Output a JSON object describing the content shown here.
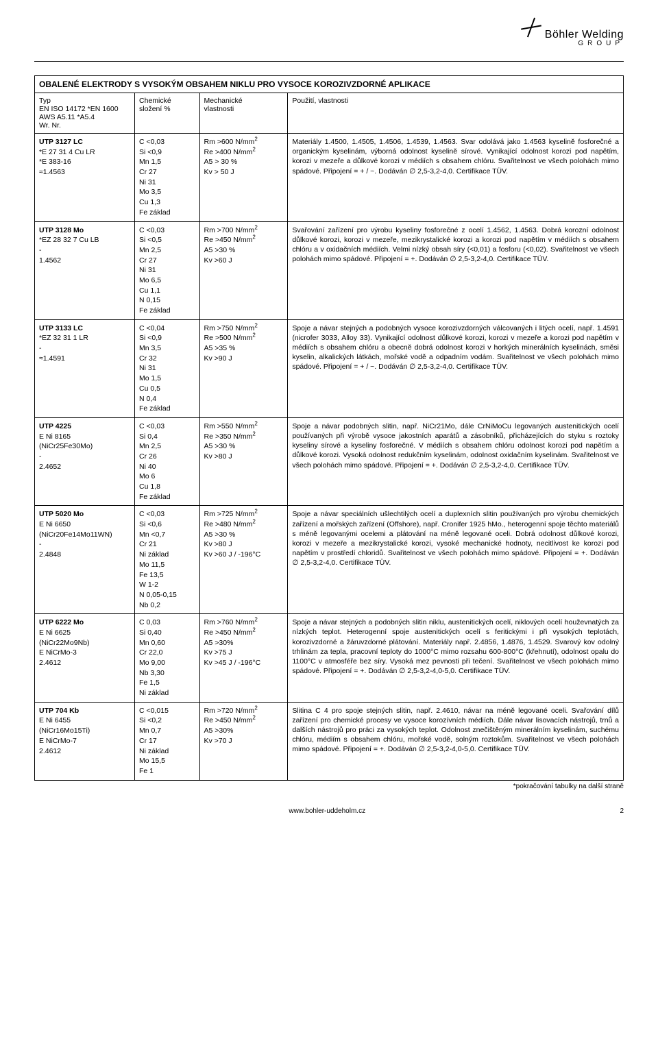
{
  "logo": {
    "line1": "Böhler Welding",
    "line2": "GROUP"
  },
  "title": "OBALENÉ ELEKTRODY S VYSOKÝM OBSAHEM NIKLU PRO VYSOCE KOROZIVZDORNÉ APLIKACE",
  "headers": {
    "typ": "Typ\nEN ISO 14172 *EN 1600\nAWS A5.11    *A5.4\nWr. Nr.",
    "chem": "Chemické\nsložení %",
    "mech": "Mechanické\nvlastnosti",
    "use": "Použití, vlastnosti"
  },
  "rows": [
    {
      "typ": "UTP 3127 LC\n*E 27 31 4 Cu LR\n*E 383-16\n≈1.4563",
      "typ_bold": "UTP 3127 LC",
      "chem": [
        "C  <0,03",
        "Si  <0,9",
        "Mn 1,5",
        "Cr   27",
        "Ni  31",
        "Mo  3,5",
        "Cu  1,3",
        "Fe  základ"
      ],
      "mech": [
        "Rm >600  N/mm²",
        "Re  >400 N/mm²",
        "A5 > 30 %",
        "Kv > 50 J"
      ],
      "use": "Materiály 1.4500, 1.4505, 1.4506, 1.4539, 1.4563. Svar odolává jako 1.4563 kyselině fosforečné a organickým kyselinám, výborná odolnost kyselině sírové. Vynikající odolnost korozi pod napětím, korozi v mezeře a důlkové korozi v médiích s obsahem chlóru. Svařitelnost ve všech polohách mimo spádové. Připojení = + / ~. Dodáván ∅ 2,5-3,2-4,0. Certifikace TÜV."
    },
    {
      "typ": "UTP 3128 Mo\n*EZ 28 32 7 Cu LB\n-\n1.4562",
      "typ_bold": "UTP 3128 Mo",
      "chem": [
        "C  <0,03",
        "Si  <0,5",
        "Mn 2,5",
        "Cr   27",
        "Ni  31",
        "Mo  6,5",
        "Cu  1,1",
        "N 0,15",
        "Fe  základ"
      ],
      "mech": [
        "Rm >700  N/mm²",
        "Re  >450 N/mm²",
        "A5  >30 %",
        "Kv  >60 J"
      ],
      "use": "Svařování zařízení pro výrobu kyseliny fosforečné z ocelí 1.4562, 1.4563. Dobrá korozní odolnost důlkové korozi, korozi v mezeře, mezikrystalické korozi a korozi pod napětím v médiích s obsahem chlóru a v oxidačních médiích. Velmi nízký obsah síry (<0,01) a fosforu (<0,02). Svařitelnost ve všech polohách mimo spádové. Připojení = +. Dodáván ∅ 2,5-3,2-4,0. Certifikace TÜV."
    },
    {
      "typ": "UTP 3133 LC\n*EZ 32 31 1 LR\n-\n≈1.4591",
      "typ_bold": "UTP 3133 LC",
      "chem": [
        "C  <0,04",
        "Si  <0,9",
        "Mn 3,5",
        "Cr   32",
        "Ni   31",
        "Mo  1,5",
        "Cu  0,5",
        "N   0,4",
        "Fe  základ"
      ],
      "mech": [
        "Rm >750  N/mm²",
        "Re  >500 N/mm²",
        "A5  >35 %",
        "Kv  >90 J"
      ],
      "use": "Spoje a návar stejných a podobných vysoce korozivzdorných válcovaných i litých ocelí, např. 1.4591 (nicrofer 3033, Alloy 33). Vynikající odolnost důlkové korozi, korozi v mezeře a korozi pod napětím v médiích s obsahem chlóru a obecně dobrá odolnost korozi v horkých minerálních kyselinách, směsi kyselin, alkalických látkách, mořské vodě a odpadním vodám. Svařitelnost ve všech polohách mimo spádové. Připojení = + / ~. Dodáván ∅ 2,5-3,2-4,0. Certifikace TÜV."
    },
    {
      "typ": "UTP 4225\nE Ni 8165\n(NiCr25Fe30Mo)\n-\n2.4652",
      "typ_bold": "UTP 4225",
      "chem": [
        "C  <0,03",
        "Si  0,4",
        "Mn 2,5",
        "Cr   26",
        "Ni   40",
        "Mo  6",
        "Cu  1,8",
        "Fe  základ"
      ],
      "mech": [
        "Rm >550  N/mm²",
        "Re  >350 N/mm²",
        "A5  >30 %",
        "Kv  >80 J"
      ],
      "use": "Spoje a návar podobných slitin, např. NiCr21Mo, dále CrNiMoCu legovaných austenitických ocelí používaných při výrobě vysoce jakostních aparátů a zásobníků, přicházejících do styku s roztoky kyseliny sírové a kyseliny fosforečné. V médiích s obsahem chlóru odolnost korozi pod napětím a důlkové korozi. Vysoká odolnost redukčním kyselinám, odolnost oxidačním kyselinám. Svařitelnost ve všech polohách mimo spádové. Připojení = +. Dodáván ∅ 2,5-3,2-4,0. Certifikace TÜV."
    },
    {
      "typ": "UTP 5020 Mo\nE Ni 6650\n(NiCr20Fe14Mo11WN)\n-\n2.4848",
      "typ_bold": "UTP 5020 Mo",
      "chem": [
        "C  <0,03",
        "Si  <0,6",
        "Mn <0,7",
        "Cr   21",
        "Ni   základ",
        "Mo  11,5",
        "Fe  13,5",
        "W   1-2",
        "N 0,05-0,15",
        "Nb  0,2"
      ],
      "mech": [
        "Rm >725  N/mm²",
        "Re  >480 N/mm²",
        "A5  >30 %",
        "Kv  >80 J",
        "Kv  >60 J / -196°C"
      ],
      "use": "Spoje a návar speciálních ušlechtilých ocelí a duplexních slitin používaných pro výrobu chemických zařízení a mořských zařízení (Offshore), např. Cronifer 1925 hMo., heterogenní spoje těchto materiálů s méně legovanými ocelemi a plátování na méně legované oceli. Dobrá odolnost důlkové korozi, korozi v mezeře a mezikrystalické korozi, vysoké mechanické hodnoty, necitlivost ke korozi pod napětím v prostředí chloridů. Svařitelnost ve všech polohách mimo spádové. Připojení = +. Dodáván ∅ 2,5-3,2-4,0. Certifikace TÜV."
    },
    {
      "typ": "UTP 6222 Mo\nE Ni 6625\n(NiCr22Mo9Nb)\nE NiCrMo-3\n2.4612",
      "typ_bold": "UTP 6222 Mo",
      "chem": [
        "C    0,03",
        "Si    0,40",
        "Mn  0,60",
        "Cr   22,0",
        "Mo  9,00",
        "Nb  3,30",
        "Fe   1,5",
        "Ni  základ"
      ],
      "mech": [
        "Rm >760 N/mm²",
        "Re  >450 N/mm²",
        "A5  >30%",
        "Kv  >75 J",
        "Kv  >45 J / -196°C"
      ],
      "use": "Spoje a návar stejných a podobných slitin niklu, austenitických ocelí, niklových ocelí houževnatých za nízkých teplot. Heterogenní spoje austenitických ocelí s feritickými i při vysokých teplotách, korozivzdorné a žáruvzdorné plátování. Materiály např. 2.4856, 1.4876, 1.4529. Svarový kov odolný trhlinám za tepla, pracovní teploty do 1000°C mimo rozsahu 600-800°C (křehnutí), odolnost opalu do 1100°C v atmosféře bez síry. Vysoká mez pevnosti při tečení. Svařitelnost ve všech polohách mimo spádové. Připojení = +. Dodáván ∅ 2,5-3,2-4,0-5,0. Certifikace TÜV."
    },
    {
      "typ": "UTP 704 Kb\nE Ni 6455\n(NiCr16Mo15Ti)\nE NiCrMo-7\n2.4612",
      "typ_bold": "UTP 704 Kb",
      "chem": [
        "C  <0,015",
        "Si  <0,2",
        "Mn  0,7",
        "Cr   17",
        "Ni   základ",
        "Mo 15,5",
        "Fe   1"
      ],
      "mech": [
        "Rm >720 N/mm²",
        "Re  >450 N/mm²",
        "A5  >30%",
        "Kv  >70 J"
      ],
      "use": "Slitina C 4 pro spoje stejných slitin, např. 2.4610, návar na méně legované oceli. Svařování dílů zařízení pro chemické procesy ve vysoce korozívních médiích. Dále návar lisovacích nástrojů, trnů a dalších nástrojů pro práci za vysokých teplot. Odolnost znečištěným minerálním kyselinám, suchému chlóru, médiím s obsahem chlóru, mořské vodě, solným roztokům. Svařitelnost ve všech polohách mimo spádové. Připojení = +. Dodáván ∅ 2,5-3,2-4,0-5,0. Certifikace TÜV."
    }
  ],
  "foot_note": "*pokračování tabulky na další straně",
  "footer_url": "www.bohler-uddeholm.cz",
  "page_num": "2"
}
